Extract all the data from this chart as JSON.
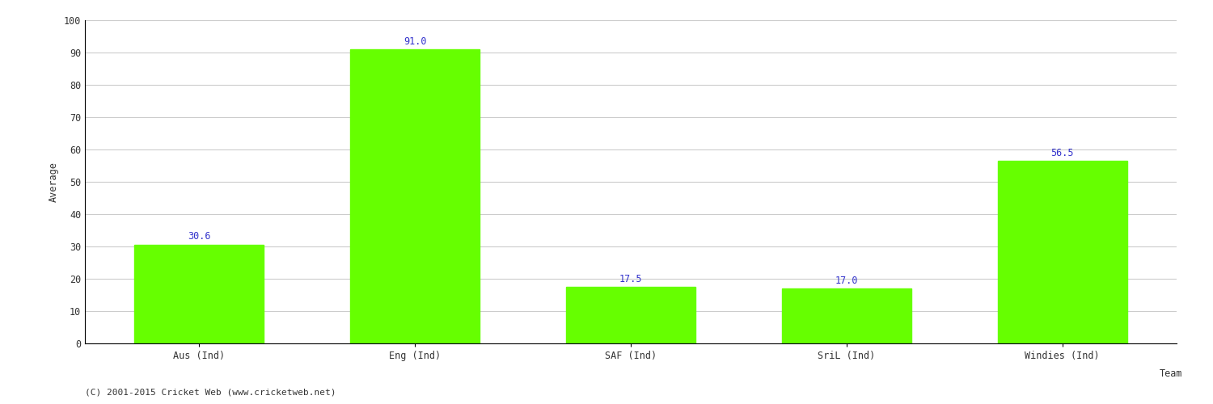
{
  "categories": [
    "Aus (Ind)",
    "Eng (Ind)",
    "SAF (Ind)",
    "SriL (Ind)",
    "Windies (Ind)"
  ],
  "values": [
    30.6,
    91.0,
    17.5,
    17.0,
    56.5
  ],
  "bar_color": "#66ff00",
  "bar_edge_color": "#66ff00",
  "label_color": "#3333cc",
  "label_fontsize": 8.5,
  "xlabel": "Team",
  "ylabel": "Average",
  "ylim": [
    0,
    100
  ],
  "yticks": [
    0,
    10,
    20,
    30,
    40,
    50,
    60,
    70,
    80,
    90,
    100
  ],
  "background_color": "#ffffff",
  "grid_color": "#cccccc",
  "axis_color": "#000000",
  "tick_label_fontsize": 8.5,
  "axis_label_fontsize": 8.5,
  "footer_text": "(C) 2001-2015 Cricket Web (www.cricketweb.net)",
  "footer_fontsize": 8,
  "footer_color": "#333333"
}
